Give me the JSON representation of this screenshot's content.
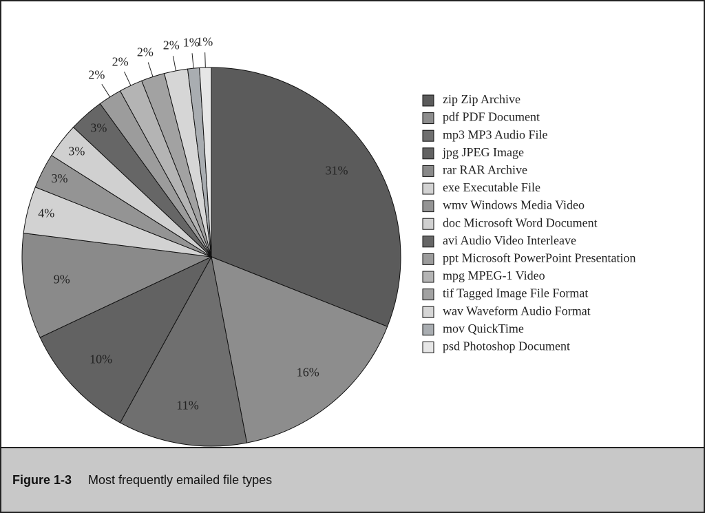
{
  "chart_data": {
    "type": "pie",
    "figure_label": "Figure 1-3",
    "title": "Most frequently emailed file types",
    "categories": [
      "zip Zip Archive",
      "pdf PDF Document",
      "mp3 MP3 Audio File",
      "jpg JPEG Image",
      "rar RAR Archive",
      "exe Executable File",
      "wmv Windows Media Video",
      "doc Microsoft Word Document",
      "avi Audio Video Interleave",
      "ppt Microsoft PowerPoint Presentation",
      "mpg MPEG-1 Video",
      "tif Tagged Image File Format",
      "wav Waveform Audio Format",
      "mov QuickTime",
      "psd Photoshop Document"
    ],
    "values": [
      31,
      16,
      11,
      10,
      9,
      4,
      3,
      3,
      3,
      2,
      2,
      2,
      2,
      1,
      1
    ],
    "value_labels": [
      "31%",
      "16%",
      "11%",
      "10%",
      "9%",
      "4%",
      "3%",
      "3%",
      "3%",
      "2%",
      "2%",
      "2%",
      "2%",
      "1%",
      "1%"
    ],
    "colors": [
      "#5b5b5b",
      "#8d8d8d",
      "#6f6f6f",
      "#626262",
      "#8a8a8a",
      "#d2d2d2",
      "#949494",
      "#d0d0d0",
      "#666666",
      "#9c9c9c",
      "#b4b4b4",
      "#a2a2a2",
      "#d6d6d6",
      "#a9adb1",
      "#e6e6e6"
    ]
  }
}
